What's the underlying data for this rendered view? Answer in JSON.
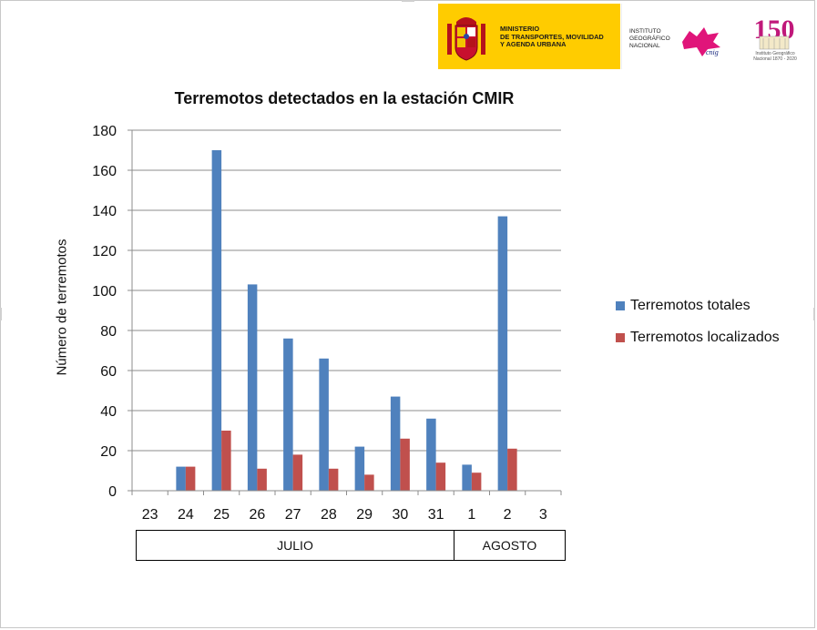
{
  "header": {
    "ministry_lines": [
      "MINISTERIO",
      "DE TRANSPORTES, MOVILIDAD",
      "Y AGENDA URBANA"
    ],
    "ign_lines": [
      "INSTITUTO",
      "GEOGRÁFICO",
      "NACIONAL"
    ],
    "ign_logo_text": "cnig",
    "anniversary_number": "150",
    "anniversary_lines": [
      "Instituto Geográfico",
      "Nacional 1870 - 2020"
    ]
  },
  "colors": {
    "total": "#4f81bd",
    "localized": "#c0504d",
    "banner": "#ffcc00"
  },
  "chart_data": {
    "type": "bar",
    "title": "Terremotos detectados en la estación CMIR",
    "xlabel": "",
    "ylabel": "Número de terremotos",
    "ylim": [
      0,
      180
    ],
    "yticks": [
      0,
      20,
      40,
      60,
      80,
      100,
      120,
      140,
      160,
      180
    ],
    "grid": true,
    "legend_position": "right",
    "categories": [
      "23",
      "24",
      "25",
      "26",
      "27",
      "28",
      "29",
      "30",
      "31",
      "1",
      "2",
      "3"
    ],
    "groups": [
      {
        "label": "JULIO",
        "categories": [
          "23",
          "24",
          "25",
          "26",
          "27",
          "28",
          "29",
          "30",
          "31"
        ]
      },
      {
        "label": "AGOSTO",
        "categories": [
          "1",
          "2",
          "3"
        ]
      }
    ],
    "series": [
      {
        "name": "Terremotos totales",
        "values": [
          0,
          12,
          170,
          103,
          76,
          66,
          22,
          47,
          36,
          13,
          137,
          0
        ]
      },
      {
        "name": "Terremotos localizados",
        "values": [
          0,
          12,
          30,
          11,
          18,
          11,
          8,
          26,
          14,
          9,
          21,
          0
        ]
      }
    ]
  }
}
